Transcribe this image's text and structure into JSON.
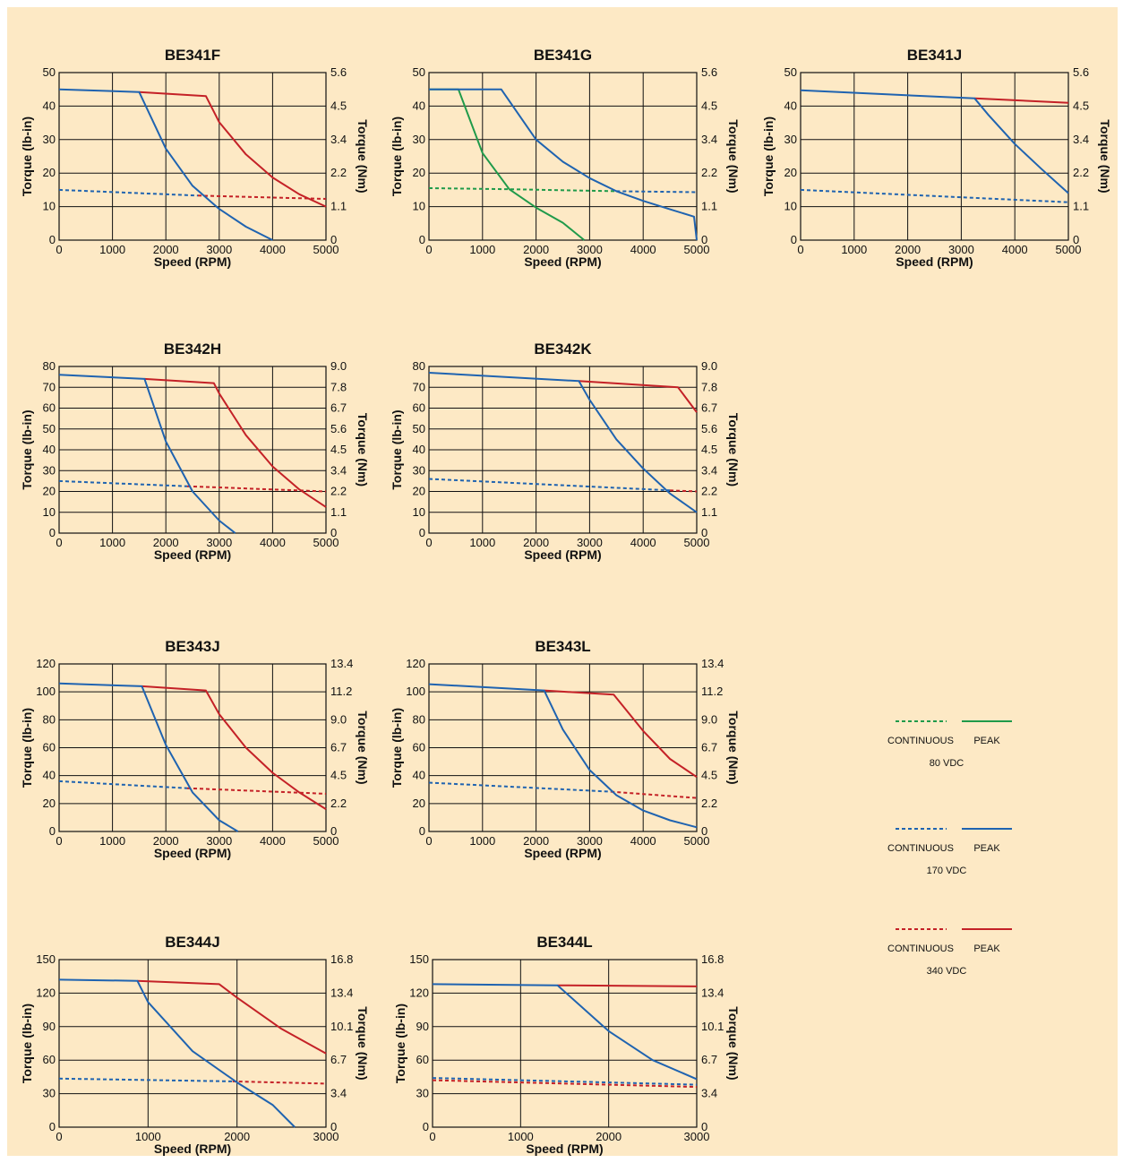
{
  "colors": {
    "v80": "#1f9a4a",
    "v170": "#1f63b0",
    "v340": "#c42127",
    "background": "#fde9c5",
    "grid": "#111111"
  },
  "legend": [
    {
      "continuous": "CONTINUOUS",
      "peak": "PEAK",
      "voltage": "80 VDC",
      "color_key": "v80"
    },
    {
      "continuous": "CONTINUOUS",
      "peak": "PEAK",
      "voltage": "170 VDC",
      "color_key": "v170"
    },
    {
      "continuous": "CONTINUOUS",
      "peak": "PEAK",
      "voltage": "340 VDC",
      "color_key": "v340"
    }
  ],
  "chart_data": [
    {
      "type": "line",
      "title": "BE341F",
      "xlabel": "Speed (RPM)",
      "ylabel": "Torque (lb-in)",
      "y2label": "Torque (Nm)",
      "xlim": [
        0,
        5000
      ],
      "ylim": [
        0,
        50
      ],
      "xticks": [
        0,
        1000,
        2000,
        3000,
        4000,
        5000
      ],
      "yticks": [
        0,
        10,
        20,
        30,
        40,
        50
      ],
      "y2ticks": [
        "0",
        "1.1",
        "2.2",
        "3.4",
        "4.5",
        "5.6"
      ],
      "grid": true,
      "series": [
        {
          "voltage": "340 VDC",
          "kind": "continuous",
          "points": [
            [
              2600,
              13.3
            ],
            [
              5000,
              12.3
            ]
          ]
        },
        {
          "voltage": "340 VDC",
          "kind": "peak",
          "points": [
            [
              1500,
              44.2
            ],
            [
              2750,
              43.0
            ],
            [
              3000,
              35.2
            ],
            [
              3500,
              25.6
            ],
            [
              4000,
              18.7
            ],
            [
              4500,
              13.7
            ],
            [
              5000,
              10
            ]
          ]
        },
        {
          "voltage": "170 VDC",
          "kind": "continuous",
          "points": [
            [
              0,
              15
            ],
            [
              2600,
              13.3
            ]
          ]
        },
        {
          "voltage": "170 VDC",
          "kind": "peak",
          "points": [
            [
              0,
              45
            ],
            [
              1500,
              44.2
            ],
            [
              2000,
              27.3
            ],
            [
              2500,
              16.2
            ],
            [
              3000,
              9.3
            ],
            [
              3500,
              4.0
            ],
            [
              4000,
              0
            ]
          ]
        }
      ]
    },
    {
      "type": "line",
      "title": "BE341G",
      "xlabel": "Speed (RPM)",
      "ylabel": "Torque (lb-in)",
      "y2label": "Torque (Nm)",
      "xlim": [
        0,
        5000
      ],
      "ylim": [
        0,
        50
      ],
      "xticks": [
        0,
        1000,
        2000,
        3000,
        4000,
        5000
      ],
      "yticks": [
        0,
        10,
        20,
        30,
        40,
        50
      ],
      "y2ticks": [
        "0",
        "1.1",
        "2.2",
        "3.4",
        "4.5",
        "5.6"
      ],
      "grid": true,
      "series": [
        {
          "voltage": "80 VDC",
          "kind": "continuous",
          "points": [
            [
              0,
              15.5
            ],
            [
              1500,
              15.2
            ],
            [
              3500,
              14.6
            ]
          ]
        },
        {
          "voltage": "80 VDC",
          "kind": "peak",
          "points": [
            [
              0,
              45
            ],
            [
              550,
              45
            ],
            [
              1000,
              26
            ],
            [
              1500,
              15.2
            ],
            [
              2000,
              9.7
            ],
            [
              2500,
              5.2
            ],
            [
              2900,
              0
            ]
          ]
        },
        {
          "voltage": "170 VDC",
          "kind": "continuous",
          "points": [
            [
              3500,
              14.6
            ],
            [
              5000,
              14.3
            ]
          ]
        },
        {
          "voltage": "170 VDC",
          "kind": "peak",
          "points": [
            [
              0,
              45
            ],
            [
              1350,
              45
            ],
            [
              2000,
              30
            ],
            [
              2500,
              23.4
            ],
            [
              3000,
              18.5
            ],
            [
              3500,
              14.6
            ],
            [
              4000,
              11.7
            ],
            [
              4500,
              9.2
            ],
            [
              4950,
              7
            ],
            [
              5000,
              0
            ]
          ]
        }
      ]
    },
    {
      "type": "line",
      "title": "BE341J",
      "xlabel": "Speed (RPM)",
      "ylabel": "Torque (lb-in)",
      "y2label": "Torque (Nm)",
      "xlim": [
        0,
        5000
      ],
      "ylim": [
        0,
        50
      ],
      "xticks": [
        0,
        1000,
        2000,
        3000,
        4000,
        5000
      ],
      "yticks": [
        0,
        10,
        20,
        30,
        40,
        50
      ],
      "y2ticks": [
        "0",
        "1.1",
        "2.2",
        "3.4",
        "4.5",
        "5.6"
      ],
      "grid": true,
      "series": [
        {
          "voltage": "170 VDC",
          "kind": "continuous",
          "points": [
            [
              0,
              15
            ],
            [
              5000,
              11.3
            ]
          ]
        },
        {
          "voltage": "340 VDC",
          "kind": "peak",
          "points": [
            [
              3250,
              42.3
            ],
            [
              5000,
              41
            ]
          ]
        },
        {
          "voltage": "170 VDC",
          "kind": "peak",
          "points": [
            [
              0,
              44.7
            ],
            [
              3250,
              42.3
            ],
            [
              3500,
              37.5
            ],
            [
              4000,
              28.7
            ],
            [
              4500,
              21.2
            ],
            [
              5000,
              14
            ]
          ]
        }
      ]
    },
    {
      "type": "line",
      "title": "BE342H",
      "xlabel": "Speed (RPM)",
      "ylabel": "Torque (lb-in)",
      "y2label": "Torque (Nm)",
      "xlim": [
        0,
        5000
      ],
      "ylim": [
        0,
        80
      ],
      "xticks": [
        0,
        1000,
        2000,
        3000,
        4000,
        5000
      ],
      "yticks": [
        0,
        10,
        20,
        30,
        40,
        50,
        60,
        70,
        80
      ],
      "y2ticks": [
        "0",
        "1.1",
        "2.2",
        "3.4",
        "4.5",
        "5.6",
        "6.7",
        "7.8",
        "9.0"
      ],
      "grid": true,
      "series": [
        {
          "voltage": "340 VDC",
          "kind": "continuous",
          "points": [
            [
              2400,
              22.5
            ],
            [
              5000,
              20
            ]
          ]
        },
        {
          "voltage": "340 VDC",
          "kind": "peak",
          "points": [
            [
              1600,
              74
            ],
            [
              2900,
              72
            ],
            [
              3000,
              67
            ],
            [
              3500,
              47
            ],
            [
              4000,
              32
            ],
            [
              4500,
              21
            ],
            [
              5000,
              12.5
            ]
          ]
        },
        {
          "voltage": "170 VDC",
          "kind": "continuous",
          "points": [
            [
              0,
              25
            ],
            [
              2400,
              22.5
            ]
          ]
        },
        {
          "voltage": "170 VDC",
          "kind": "peak",
          "points": [
            [
              0,
              76
            ],
            [
              1600,
              74
            ],
            [
              2000,
              44
            ],
            [
              2500,
              20
            ],
            [
              3000,
              6
            ],
            [
              3300,
              0
            ]
          ]
        }
      ]
    },
    {
      "type": "line",
      "title": "BE342K",
      "xlabel": "Speed (RPM)",
      "ylabel": "Torque (lb-in)",
      "y2label": "Torque (Nm)",
      "xlim": [
        0,
        5000
      ],
      "ylim": [
        0,
        80
      ],
      "xticks": [
        0,
        1000,
        2000,
        3000,
        4000,
        5000
      ],
      "yticks": [
        0,
        10,
        20,
        30,
        40,
        50,
        60,
        70,
        80
      ],
      "y2ticks": [
        "0",
        "1.1",
        "2.2",
        "3.4",
        "4.5",
        "5.6",
        "6.7",
        "7.8",
        "9.0"
      ],
      "grid": true,
      "series": [
        {
          "voltage": "170 VDC",
          "kind": "continuous",
          "points": [
            [
              0,
              26
            ],
            [
              4500,
              20.5
            ]
          ]
        },
        {
          "voltage": "340 VDC",
          "kind": "continuous",
          "points": [
            [
              4500,
              20.5
            ],
            [
              5000,
              20
            ]
          ]
        },
        {
          "voltage": "340 VDC",
          "kind": "peak",
          "points": [
            [
              2800,
              73
            ],
            [
              4650,
              70
            ],
            [
              5000,
              58
            ]
          ]
        },
        {
          "voltage": "170 VDC",
          "kind": "peak",
          "points": [
            [
              0,
              77
            ],
            [
              2800,
              73
            ],
            [
              3000,
              64
            ],
            [
              3500,
              45
            ],
            [
              4000,
              31
            ],
            [
              4500,
              19
            ],
            [
              5000,
              10
            ]
          ]
        }
      ]
    },
    {
      "type": "line",
      "title": "BE343J",
      "xlabel": "Speed (RPM)",
      "ylabel": "Torque (lb-in)",
      "y2label": "Torque (Nm)",
      "xlim": [
        0,
        5000
      ],
      "ylim": [
        0,
        120
      ],
      "xticks": [
        0,
        1000,
        2000,
        3000,
        4000,
        5000
      ],
      "yticks": [
        0,
        20,
        40,
        60,
        80,
        100,
        120
      ],
      "y2ticks": [
        "0",
        "2.2",
        "4.5",
        "6.7",
        "9.0",
        "11.2",
        "13.4"
      ],
      "grid": true,
      "series": [
        {
          "voltage": "340 VDC",
          "kind": "continuous",
          "points": [
            [
              2400,
              31
            ],
            [
              5000,
              27
            ]
          ]
        },
        {
          "voltage": "340 VDC",
          "kind": "peak",
          "points": [
            [
              1550,
              104
            ],
            [
              2750,
              101
            ],
            [
              3000,
              84
            ],
            [
              3500,
              60
            ],
            [
              4000,
              42
            ],
            [
              4500,
              28
            ],
            [
              5000,
              16
            ]
          ]
        },
        {
          "voltage": "170 VDC",
          "kind": "continuous",
          "points": [
            [
              0,
              36
            ],
            [
              2400,
              31
            ]
          ]
        },
        {
          "voltage": "170 VDC",
          "kind": "peak",
          "points": [
            [
              0,
              106
            ],
            [
              1550,
              104
            ],
            [
              2000,
              62
            ],
            [
              2500,
              28
            ],
            [
              3000,
              8
            ],
            [
              3350,
              0
            ]
          ]
        }
      ]
    },
    {
      "type": "line",
      "title": "BE343L",
      "xlabel": "Speed (RPM)",
      "ylabel": "Torque (lb-in)",
      "y2label": "Torque (Nm)",
      "xlim": [
        0,
        5000
      ],
      "ylim": [
        0,
        120
      ],
      "xticks": [
        0,
        1000,
        2000,
        3000,
        4000,
        5000
      ],
      "yticks": [
        0,
        20,
        40,
        60,
        80,
        100,
        120
      ],
      "y2ticks": [
        "0",
        "2.2",
        "4.5",
        "6.7",
        "9.0",
        "11.2",
        "13.4"
      ],
      "grid": true,
      "series": [
        {
          "voltage": "170 VDC",
          "kind": "continuous",
          "points": [
            [
              0,
              35
            ],
            [
              3400,
              28.5
            ]
          ]
        },
        {
          "voltage": "340 VDC",
          "kind": "continuous",
          "points": [
            [
              3400,
              28.5
            ],
            [
              5000,
              24
            ]
          ]
        },
        {
          "voltage": "340 VDC",
          "kind": "peak",
          "points": [
            [
              2150,
              101
            ],
            [
              3450,
              98
            ],
            [
              4000,
              72
            ],
            [
              4500,
              52
            ],
            [
              5000,
              39
            ]
          ]
        },
        {
          "voltage": "170 VDC",
          "kind": "peak",
          "points": [
            [
              0,
              105.5
            ],
            [
              2150,
              101
            ],
            [
              2500,
              73
            ],
            [
              3000,
              44
            ],
            [
              3500,
              26
            ],
            [
              4000,
              15
            ],
            [
              4500,
              8
            ],
            [
              5000,
              3
            ]
          ]
        }
      ]
    },
    {
      "type": "line",
      "title": "BE344J",
      "xlabel": "Speed (RPM)",
      "ylabel": "Torque (lb-in)",
      "y2label": "Torque (Nm)",
      "xlim": [
        0,
        3000
      ],
      "ylim": [
        0,
        150
      ],
      "xticks": [
        0,
        1000,
        2000,
        3000
      ],
      "yticks": [
        0,
        30,
        60,
        90,
        120,
        150
      ],
      "y2ticks": [
        "0",
        "3.4",
        "6.7",
        "10.1",
        "13.4",
        "16.8"
      ],
      "grid": true,
      "series": [
        {
          "voltage": "340 VDC",
          "kind": "continuous",
          "points": [
            [
              1950,
              41
            ],
            [
              3000,
              39
            ]
          ]
        },
        {
          "voltage": "340 VDC",
          "kind": "peak",
          "points": [
            [
              880,
              131
            ],
            [
              1800,
              128
            ],
            [
              2000,
              116
            ],
            [
              2500,
              88
            ],
            [
              3000,
              66
            ]
          ]
        },
        {
          "voltage": "170 VDC",
          "kind": "continuous",
          "points": [
            [
              0,
              43.5
            ],
            [
              1950,
              41
            ]
          ]
        },
        {
          "voltage": "170 VDC",
          "kind": "peak",
          "points": [
            [
              0,
              132
            ],
            [
              880,
              131
            ],
            [
              1000,
              112
            ],
            [
              1500,
              68
            ],
            [
              2000,
              40
            ],
            [
              2400,
              20
            ],
            [
              2650,
              0
            ]
          ]
        }
      ]
    },
    {
      "type": "line",
      "title": "BE344L",
      "xlabel": "Speed (RPM)",
      "ylabel": "Torque (lb-in)",
      "y2label": "Torque (Nm)",
      "xlim": [
        0,
        3000
      ],
      "ylim": [
        0,
        150
      ],
      "xticks": [
        0,
        1000,
        2000,
        3000
      ],
      "yticks": [
        0,
        30,
        60,
        90,
        120,
        150
      ],
      "y2ticks": [
        "0",
        "3.4",
        "6.7",
        "10.1",
        "13.4",
        "16.8"
      ],
      "grid": true,
      "series": [
        {
          "voltage": "170 VDC",
          "kind": "continuous",
          "points": [
            [
              0,
              44
            ],
            [
              3000,
              38
            ]
          ]
        },
        {
          "voltage": "340 VDC",
          "kind": "continuous",
          "points": [
            [
              0,
              42
            ],
            [
              3000,
              36
            ]
          ]
        },
        {
          "voltage": "340 VDC",
          "kind": "peak",
          "points": [
            [
              1420,
              127
            ],
            [
              3000,
              126
            ]
          ]
        },
        {
          "voltage": "170 VDC",
          "kind": "peak",
          "points": [
            [
              0,
              128
            ],
            [
              1420,
              127
            ],
            [
              2000,
              86
            ],
            [
              2500,
              60
            ],
            [
              3000,
              43
            ]
          ]
        }
      ]
    }
  ]
}
